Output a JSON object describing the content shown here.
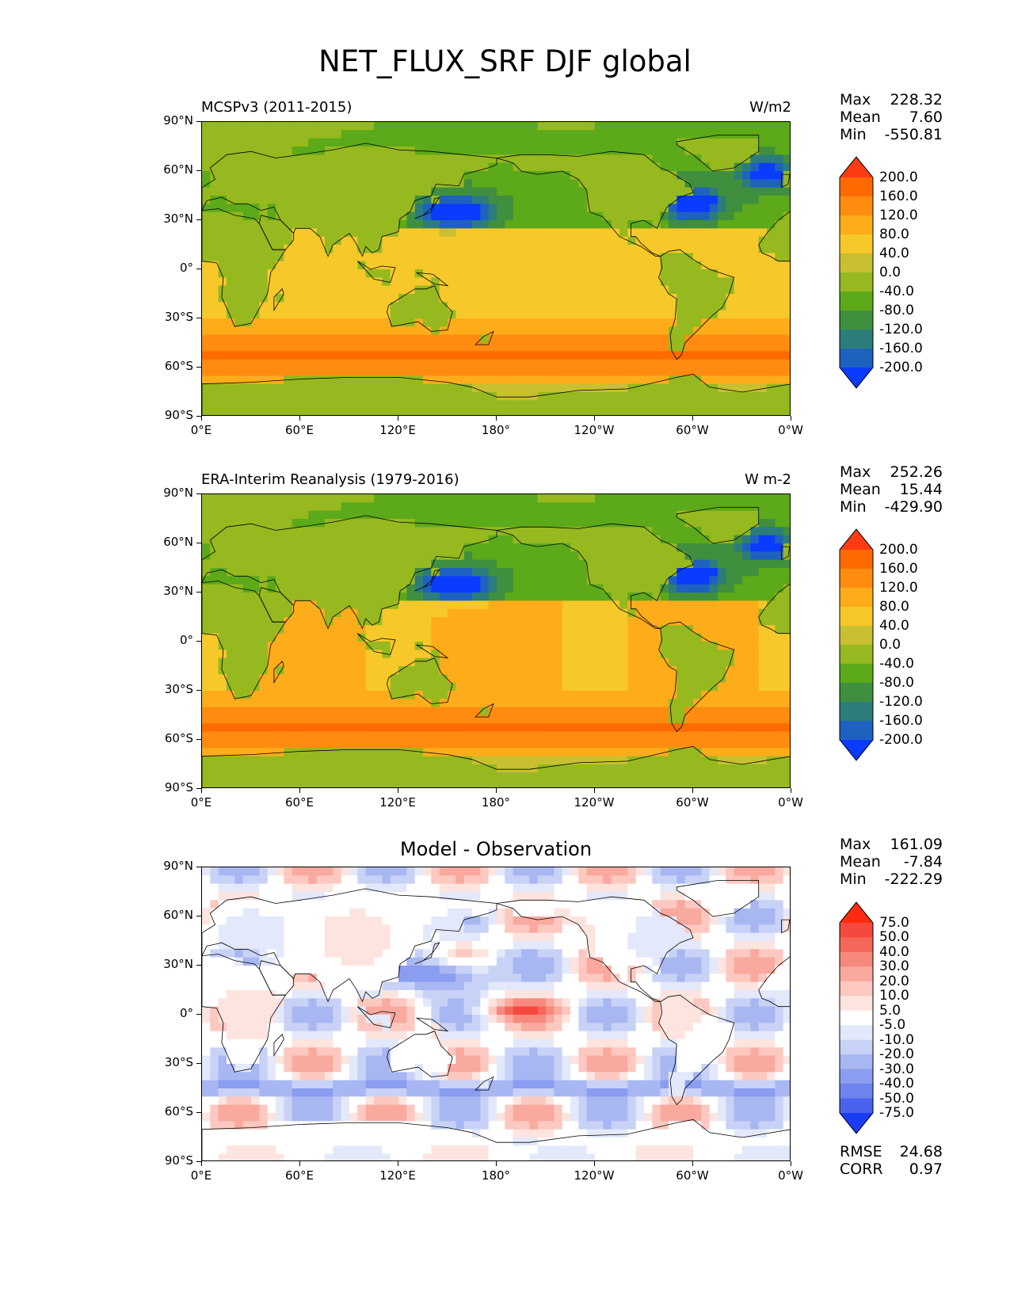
{
  "title": "NET_FLUX_SRF DJF global",
  "axes": {
    "lat_ticks": [
      "90°N",
      "60°N",
      "30°N",
      "0°",
      "30°S",
      "60°S",
      "90°S"
    ],
    "lon_ticks": [
      "0°E",
      "60°E",
      "120°E",
      "180°",
      "120°W",
      "60°W",
      "0°W"
    ]
  },
  "panels": [
    {
      "left_title": "MCSPv3 (2011-2015)",
      "right_title": "W/m2",
      "center_title": "",
      "stats": {
        "max_label": "Max",
        "max": "228.32",
        "mean_label": "Mean",
        "mean": "7.60",
        "min_label": "Min",
        "min": "-550.81"
      },
      "colorbar": {
        "labels": [
          "200.0",
          "160.0",
          "120.0",
          "80.0",
          "40.0",
          "0.0",
          "-40.0",
          "-80.0",
          "-120.0",
          "-160.0",
          "-200.0"
        ],
        "colors": [
          "#ff3b14",
          "#ff6a00",
          "#ff8c10",
          "#ffac1a",
          "#f6c82a",
          "#c8c030",
          "#95b91e",
          "#5ca919",
          "#3f8f3f",
          "#2c7d7a",
          "#1e62c0",
          "#0a3cff"
        ]
      },
      "field": "model"
    },
    {
      "left_title": "ERA-Interim Reanalysis (1979-2016)",
      "right_title": "W m-2",
      "center_title": "",
      "stats": {
        "max_label": "Max",
        "max": "252.26",
        "mean_label": "Mean",
        "mean": "15.44",
        "min_label": "Min",
        "min": "-429.90"
      },
      "colorbar": {
        "labels": [
          "200.0",
          "160.0",
          "120.0",
          "80.0",
          "40.0",
          "0.0",
          "-40.0",
          "-80.0",
          "-120.0",
          "-160.0",
          "-200.0"
        ],
        "colors": [
          "#ff3b14",
          "#ff6a00",
          "#ff8c10",
          "#ffac1a",
          "#f6c82a",
          "#c8c030",
          "#95b91e",
          "#5ca919",
          "#3f8f3f",
          "#2c7d7a",
          "#1e62c0",
          "#0a3cff"
        ]
      },
      "field": "obs"
    },
    {
      "left_title": "",
      "right_title": "",
      "center_title": "Model - Observation",
      "stats": {
        "max_label": "Max",
        "max": "161.09",
        "mean_label": "Mean",
        "mean": "-7.84",
        "min_label": "Min",
        "min": "-222.29"
      },
      "colorbar": {
        "labels": [
          "75.0",
          "50.0",
          "40.0",
          "30.0",
          "20.0",
          "10.0",
          "5.0",
          "-5.0",
          "-10.0",
          "-20.0",
          "-30.0",
          "-40.0",
          "-50.0",
          "-75.0"
        ],
        "colors": [
          "#ff2a10",
          "#f4493c",
          "#f5675b",
          "#f7897c",
          "#f9a99e",
          "#fcc8c0",
          "#fde4de",
          "#ffffff",
          "#e3e8fb",
          "#c8d2f7",
          "#a8b7f2",
          "#8a9df0",
          "#6d83ee",
          "#4a63ef",
          "#1b3cf5"
        ]
      },
      "field": "diff",
      "extra": {
        "rmse_label": "RMSE",
        "rmse": "24.68",
        "corr_label": "CORR",
        "corr": "0.97"
      }
    }
  ],
  "chart_data": [
    {
      "type": "heatmap",
      "title": "MCSPv3 (2011-2015)",
      "units": "W/m2",
      "x_range": [
        0,
        360
      ],
      "y_range": [
        -90,
        90
      ],
      "levels": [
        -200,
        -160,
        -120,
        -80,
        -40,
        0,
        40,
        80,
        120,
        160,
        200
      ],
      "max": 228.32,
      "mean": 7.6,
      "min": -550.81
    },
    {
      "type": "heatmap",
      "title": "ERA-Interim Reanalysis (1979-2016)",
      "units": "W m-2",
      "x_range": [
        0,
        360
      ],
      "y_range": [
        -90,
        90
      ],
      "levels": [
        -200,
        -160,
        -120,
        -80,
        -40,
        0,
        40,
        80,
        120,
        160,
        200
      ],
      "max": 252.26,
      "mean": 15.44,
      "min": -429.9
    },
    {
      "type": "heatmap",
      "title": "Model - Observation",
      "x_range": [
        0,
        360
      ],
      "y_range": [
        -90,
        90
      ],
      "levels": [
        -75,
        -50,
        -40,
        -30,
        -20,
        -10,
        -5,
        5,
        10,
        20,
        30,
        40,
        50,
        75
      ],
      "max": 161.09,
      "mean": -7.84,
      "min": -222.29,
      "rmse": 24.68,
      "corr": 0.97
    }
  ]
}
